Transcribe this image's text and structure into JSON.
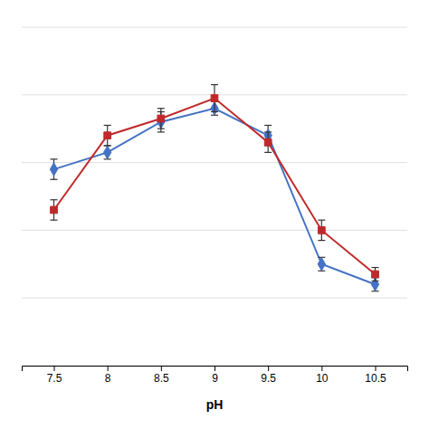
{
  "chart_data": {
    "type": "line",
    "x": [
      7.5,
      8.0,
      8.5,
      9.0,
      9.5,
      10.0,
      10.5
    ],
    "series": [
      {
        "color": "#4472C4",
        "marker": "diamond",
        "values": [
          58,
          63,
          72,
          76,
          68,
          30,
          24
        ],
        "errors": [
          3,
          2,
          3,
          2,
          3,
          2,
          2
        ]
      },
      {
        "color": "#C0292B",
        "marker": "square",
        "values": [
          46,
          68,
          73,
          79,
          66,
          40,
          27
        ],
        "errors": [
          3,
          3,
          3,
          4,
          3,
          3,
          2
        ]
      }
    ],
    "xlabel": "pH",
    "xlim": [
      7.2,
      10.8
    ],
    "xticks": [
      7.5,
      8,
      8.5,
      9,
      9.5,
      10,
      10.5
    ],
    "ylim": [
      0,
      100
    ],
    "yticks": [
      0,
      20,
      40,
      60,
      80,
      100
    ],
    "grid": true,
    "tick_labels": "x"
  }
}
